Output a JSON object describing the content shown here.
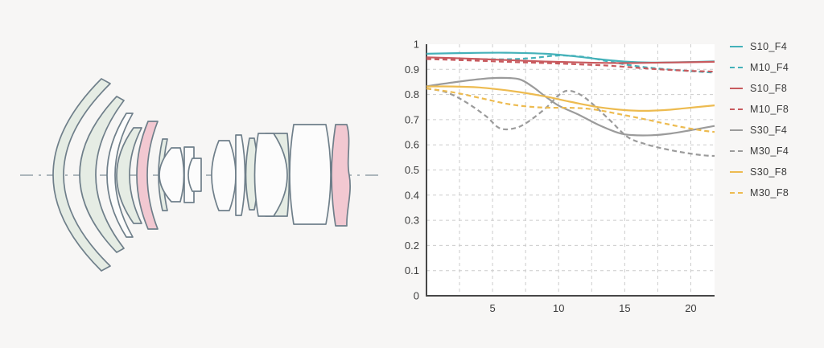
{
  "figure": {
    "description": "Lens cross-section diagram with MTF line chart",
    "background_color": "#f7f6f5"
  },
  "lens_diagram": {
    "optical_axis_style": "dash-dot",
    "element_tints_left_to_right": [
      "green",
      "green",
      "white",
      "green",
      "pink",
      "green",
      "white",
      "white",
      "white",
      "white",
      "white",
      "green",
      "white+green",
      "white",
      "pink"
    ],
    "colors": {
      "outline": "#6f7f8a",
      "white_element": "#fcfcfc",
      "green_element": "#e5ece4",
      "pink_element": "#f2c8d1",
      "axis_line": "#93a1a8"
    }
  },
  "chart_data": {
    "type": "line",
    "title": "",
    "xlabel": "",
    "ylabel": "",
    "xlim": [
      0,
      21.8
    ],
    "ylim": [
      0,
      1
    ],
    "x_tick_labels": [
      "5",
      "10",
      "15",
      "20"
    ],
    "x_grid_interval": 2.5,
    "y_tick_interval": 0.1,
    "y_tick_labels": [
      "0",
      "0.1",
      "0.2",
      "0.3",
      "0.4",
      "0.5",
      "0.6",
      "0.7",
      "0.8",
      "0.9",
      "1"
    ],
    "grid": true,
    "legend_position": "right",
    "plot_background": "#ffffff",
    "axis_color": "#474747",
    "grid_color": "#cccccc",
    "series": [
      {
        "name": "S10_F4",
        "color": "#44b1b9",
        "style": "solid",
        "points": [
          [
            0,
            0.962
          ],
          [
            3,
            0.965
          ],
          [
            6,
            0.966
          ],
          [
            9,
            0.962
          ],
          [
            11,
            0.953
          ],
          [
            13,
            0.941
          ],
          [
            15,
            0.931
          ],
          [
            17,
            0.927
          ],
          [
            19,
            0.928
          ],
          [
            21.8,
            0.932
          ]
        ]
      },
      {
        "name": "M10_F4",
        "color": "#44b1b9",
        "style": "dashed",
        "points": [
          [
            0,
            0.946
          ],
          [
            3,
            0.942
          ],
          [
            6,
            0.94
          ],
          [
            8,
            0.945
          ],
          [
            10,
            0.955
          ],
          [
            12,
            0.949
          ],
          [
            14,
            0.929
          ],
          [
            16,
            0.912
          ],
          [
            18,
            0.901
          ],
          [
            20,
            0.893
          ],
          [
            21.8,
            0.887
          ]
        ]
      },
      {
        "name": "S10_F8",
        "color": "#c85a5e",
        "style": "solid",
        "points": [
          [
            0,
            0.948
          ],
          [
            3,
            0.943
          ],
          [
            6,
            0.937
          ],
          [
            9,
            0.931
          ],
          [
            12,
            0.927
          ],
          [
            15,
            0.925
          ],
          [
            18,
            0.927
          ],
          [
            21.8,
            0.93
          ]
        ]
      },
      {
        "name": "M10_F8",
        "color": "#c85a5e",
        "style": "dashed",
        "points": [
          [
            0,
            0.941
          ],
          [
            3,
            0.936
          ],
          [
            6,
            0.93
          ],
          [
            9,
            0.925
          ],
          [
            12,
            0.919
          ],
          [
            14,
            0.914
          ],
          [
            16,
            0.906
          ],
          [
            18,
            0.899
          ],
          [
            20,
            0.894
          ],
          [
            21.8,
            0.891
          ]
        ]
      },
      {
        "name": "S30_F4",
        "color": "#9b9b9b",
        "style": "solid",
        "points": [
          [
            0,
            0.833
          ],
          [
            2,
            0.848
          ],
          [
            4,
            0.861
          ],
          [
            5.5,
            0.866
          ],
          [
            7,
            0.861
          ],
          [
            8,
            0.832
          ],
          [
            9,
            0.792
          ],
          [
            10,
            0.756
          ],
          [
            11.5,
            0.72
          ],
          [
            13,
            0.68
          ],
          [
            14.5,
            0.648
          ],
          [
            15.5,
            0.639
          ],
          [
            17,
            0.638
          ],
          [
            18.5,
            0.645
          ],
          [
            20,
            0.658
          ],
          [
            21.8,
            0.675
          ]
        ]
      },
      {
        "name": "M30_F4",
        "color": "#9b9b9b",
        "style": "dashed",
        "points": [
          [
            0,
            0.824
          ],
          [
            1.5,
            0.809
          ],
          [
            3,
            0.769
          ],
          [
            4.5,
            0.714
          ],
          [
            5.5,
            0.667
          ],
          [
            6.5,
            0.664
          ],
          [
            7.5,
            0.685
          ],
          [
            9,
            0.745
          ],
          [
            10,
            0.797
          ],
          [
            10.8,
            0.815
          ],
          [
            12,
            0.787
          ],
          [
            13.8,
            0.702
          ],
          [
            15.2,
            0.632
          ],
          [
            16.5,
            0.604
          ],
          [
            18,
            0.584
          ],
          [
            19.5,
            0.569
          ],
          [
            21,
            0.558
          ],
          [
            21.8,
            0.556
          ]
        ]
      },
      {
        "name": "S30_F8",
        "color": "#edbb50",
        "style": "solid",
        "points": [
          [
            0,
            0.832
          ],
          [
            2,
            0.832
          ],
          [
            4,
            0.828
          ],
          [
            5.5,
            0.82
          ],
          [
            7,
            0.81
          ],
          [
            9,
            0.792
          ],
          [
            11,
            0.77
          ],
          [
            13,
            0.75
          ],
          [
            15,
            0.738
          ],
          [
            16.5,
            0.735
          ],
          [
            18,
            0.738
          ],
          [
            19.5,
            0.745
          ],
          [
            21.8,
            0.757
          ]
        ]
      },
      {
        "name": "M30_F8",
        "color": "#edbb50",
        "style": "dashed",
        "points": [
          [
            0,
            0.824
          ],
          [
            2,
            0.809
          ],
          [
            4,
            0.787
          ],
          [
            6,
            0.764
          ],
          [
            7.5,
            0.753
          ],
          [
            9,
            0.748
          ],
          [
            11,
            0.747
          ],
          [
            12.5,
            0.742
          ],
          [
            14,
            0.728
          ],
          [
            16.5,
            0.702
          ],
          [
            18,
            0.685
          ],
          [
            19.5,
            0.669
          ],
          [
            21,
            0.656
          ],
          [
            21.8,
            0.651
          ]
        ]
      }
    ]
  }
}
